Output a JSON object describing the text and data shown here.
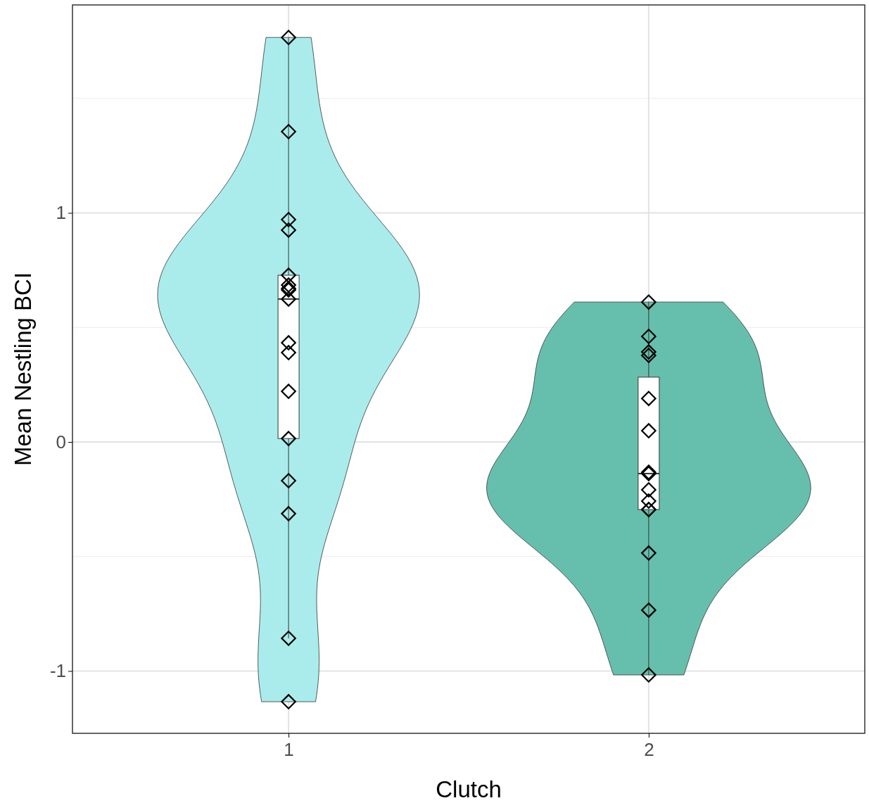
{
  "chart_data": {
    "type": "box",
    "xlabel": "Clutch",
    "ylabel": "Mean Nestling BCI",
    "categories": [
      "1",
      "2"
    ],
    "boxes": [
      {
        "low": -0.857,
        "q1": 0.015,
        "median": 0.624,
        "q3": 0.728,
        "high": 1.766
      },
      {
        "low": -1.017,
        "q1": -0.295,
        "median": -0.138,
        "q3": 0.283,
        "high": 0.611
      }
    ],
    "series": [
      {
        "type": "scatter",
        "color": "#000000",
        "marker": "diamond",
        "x": [
          "1",
          "1",
          "1",
          "1",
          "1",
          "1",
          "1",
          "1",
          "1",
          "1",
          "1",
          "1",
          "1",
          "1",
          "1",
          "1",
          "1",
          "2",
          "2",
          "2",
          "2",
          "2",
          "2",
          "2",
          "2",
          "2",
          "2",
          "2",
          "2",
          "2",
          "2",
          "2"
        ],
        "values": [
          1.766,
          1.355,
          0.971,
          0.925,
          0.728,
          0.685,
          0.67,
          0.664,
          0.624,
          0.433,
          0.39,
          0.221,
          0.015,
          -0.169,
          -0.313,
          -0.857,
          -1.134,
          0.611,
          0.461,
          0.393,
          0.378,
          0.19,
          0.049,
          -0.132,
          -0.138,
          -0.209,
          -0.258,
          -0.295,
          -0.295,
          -0.485,
          -0.734,
          -1.017
        ]
      }
    ],
    "ylim": [
      -1.272,
      1.908
    ],
    "yticks": [
      -1,
      0,
      1
    ],
    "grid": true
  }
}
